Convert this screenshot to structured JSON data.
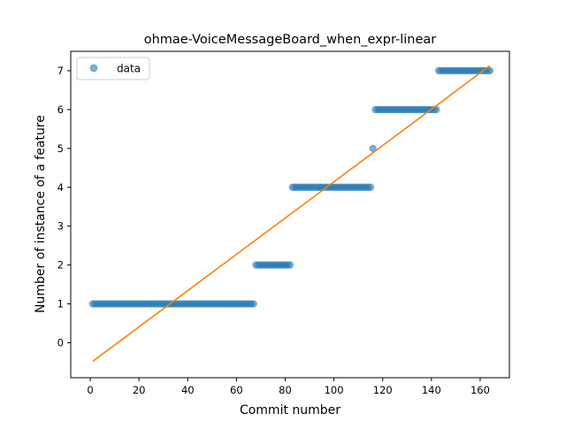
{
  "chart_data": {
    "type": "scatter",
    "title": "ohmae-VoiceMessageBoard_when_expr-linear",
    "xlabel": "Commit number",
    "ylabel": "Number of instance of a feature",
    "xlim": [
      -8,
      172
    ],
    "ylim": [
      -0.9,
      7.5
    ],
    "xticks": [
      0,
      20,
      40,
      60,
      80,
      100,
      120,
      140,
      160
    ],
    "yticks": [
      0,
      1,
      2,
      3,
      4,
      5,
      6,
      7
    ],
    "grid": false,
    "legend_position": "top-left",
    "colors": {
      "data": "#1f77b4",
      "fit": "#ff7f0e"
    },
    "series": [
      {
        "name": "data",
        "style": "markers",
        "segments": [
          {
            "x_start": 1,
            "x_end": 67,
            "y": 1
          },
          {
            "x_start": 68,
            "x_end": 82,
            "y": 2
          },
          {
            "x_start": 83,
            "x_end": 115,
            "y": 4
          },
          {
            "x_start": 116,
            "x_end": 116,
            "y": 5
          },
          {
            "x_start": 117,
            "x_end": 142,
            "y": 6
          },
          {
            "x_start": 143,
            "x_end": 164,
            "y": 7
          }
        ]
      },
      {
        "style": "line",
        "x": [
          1,
          164
        ],
        "y": [
          -0.48,
          7.13
        ]
      }
    ]
  }
}
